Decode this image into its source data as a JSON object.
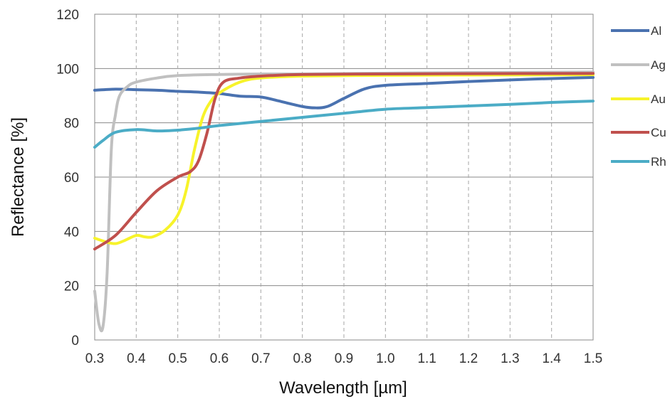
{
  "chart_data": {
    "type": "line",
    "xlabel": "Wavelength [µm]",
    "ylabel": "Reflectance [%]",
    "xlim": [
      0.3,
      1.5
    ],
    "ylim": [
      0,
      120
    ],
    "x_ticks": [
      "0.3",
      "0.4",
      "0.5",
      "0.6",
      "0.7",
      "0.8",
      "0.9",
      "1.0",
      "1.1",
      "1.2",
      "1.3",
      "1.4",
      "1.5"
    ],
    "y_ticks": [
      "0",
      "20",
      "40",
      "60",
      "80",
      "100",
      "120"
    ],
    "grid": {
      "horizontal": "solid",
      "vertical": "dashed"
    },
    "legend_position": "right",
    "series": [
      {
        "name": "Al",
        "color": "#4a72b0",
        "points": [
          [
            0.3,
            92
          ],
          [
            0.35,
            92.4
          ],
          [
            0.4,
            92.2
          ],
          [
            0.45,
            92
          ],
          [
            0.5,
            91.6
          ],
          [
            0.55,
            91.3
          ],
          [
            0.6,
            90.8
          ],
          [
            0.65,
            89.8
          ],
          [
            0.7,
            89.5
          ],
          [
            0.75,
            87.8
          ],
          [
            0.8,
            86
          ],
          [
            0.83,
            85.5
          ],
          [
            0.86,
            86
          ],
          [
            0.9,
            89
          ],
          [
            0.95,
            92.5
          ],
          [
            1.0,
            93.8
          ],
          [
            1.1,
            94.5
          ],
          [
            1.2,
            95.2
          ],
          [
            1.3,
            95.8
          ],
          [
            1.4,
            96.3
          ],
          [
            1.5,
            96.7
          ]
        ]
      },
      {
        "name": "Ag",
        "color": "#c0c0c0",
        "points": [
          [
            0.3,
            18
          ],
          [
            0.31,
            6
          ],
          [
            0.32,
            5
          ],
          [
            0.33,
            25
          ],
          [
            0.34,
            70
          ],
          [
            0.35,
            83
          ],
          [
            0.36,
            90
          ],
          [
            0.38,
            93.5
          ],
          [
            0.4,
            95
          ],
          [
            0.45,
            96.5
          ],
          [
            0.5,
            97.4
          ],
          [
            0.6,
            97.8
          ],
          [
            0.7,
            98
          ],
          [
            0.8,
            98
          ],
          [
            1.0,
            98.3
          ],
          [
            1.2,
            98.5
          ],
          [
            1.5,
            98.7
          ]
        ]
      },
      {
        "name": "Au",
        "color": "#f7f32a",
        "points": [
          [
            0.3,
            37.5
          ],
          [
            0.33,
            36
          ],
          [
            0.35,
            35.5
          ],
          [
            0.37,
            36.5
          ],
          [
            0.4,
            38.5
          ],
          [
            0.42,
            38
          ],
          [
            0.44,
            38
          ],
          [
            0.47,
            40.5
          ],
          [
            0.5,
            46
          ],
          [
            0.52,
            55
          ],
          [
            0.54,
            70
          ],
          [
            0.56,
            82
          ],
          [
            0.58,
            88
          ],
          [
            0.6,
            91
          ],
          [
            0.65,
            95
          ],
          [
            0.7,
            96.5
          ],
          [
            0.8,
            97.2
          ],
          [
            1.0,
            97.5
          ],
          [
            1.2,
            97.6
          ],
          [
            1.5,
            97.7
          ]
        ]
      },
      {
        "name": "Cu",
        "color": "#c0504d",
        "points": [
          [
            0.3,
            33.5
          ],
          [
            0.35,
            38.5
          ],
          [
            0.4,
            47
          ],
          [
            0.45,
            55
          ],
          [
            0.5,
            60
          ],
          [
            0.53,
            62
          ],
          [
            0.55,
            66
          ],
          [
            0.57,
            76
          ],
          [
            0.59,
            89
          ],
          [
            0.61,
            95
          ],
          [
            0.65,
            96.5
          ],
          [
            0.7,
            97.2
          ],
          [
            0.8,
            97.8
          ],
          [
            1.0,
            98
          ],
          [
            1.2,
            98.1
          ],
          [
            1.5,
            98.2
          ]
        ]
      },
      {
        "name": "Rh",
        "color": "#4bacc6",
        "points": [
          [
            0.3,
            71
          ],
          [
            0.32,
            73.5
          ],
          [
            0.35,
            76.5
          ],
          [
            0.4,
            77.5
          ],
          [
            0.45,
            77
          ],
          [
            0.5,
            77.3
          ],
          [
            0.55,
            78
          ],
          [
            0.6,
            79
          ],
          [
            0.7,
            80.5
          ],
          [
            0.8,
            82
          ],
          [
            0.9,
            83.5
          ],
          [
            1.0,
            85
          ],
          [
            1.1,
            85.6
          ],
          [
            1.2,
            86.2
          ],
          [
            1.3,
            86.8
          ],
          [
            1.4,
            87.5
          ],
          [
            1.5,
            88
          ]
        ]
      }
    ]
  }
}
